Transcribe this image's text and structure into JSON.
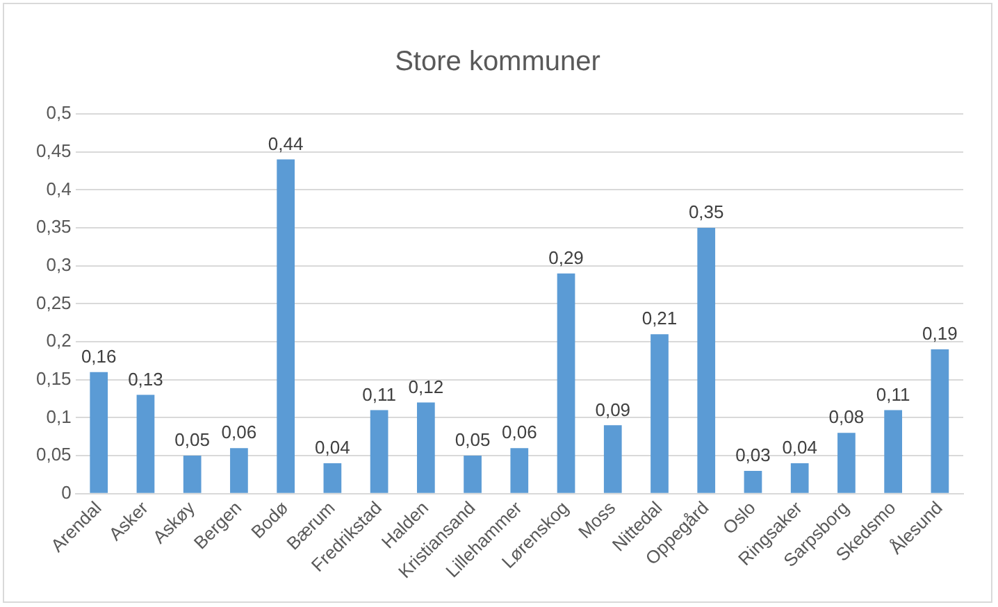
{
  "chart_data": {
    "type": "bar",
    "title": "Store kommuner",
    "categories": [
      "Arendal",
      "Asker",
      "Askøy",
      "Bergen",
      "Bodø",
      "Bærum",
      "Fredrikstad",
      "Halden",
      "Kristiansand",
      "Lillehammer",
      "Lørenskog",
      "Moss",
      "Nittedal",
      "Oppegård",
      "Oslo",
      "Ringsaker",
      "Sarpsborg",
      "Skedsmo",
      "Ålesund"
    ],
    "values": [
      0.16,
      0.13,
      0.05,
      0.06,
      0.44,
      0.04,
      0.11,
      0.12,
      0.05,
      0.06,
      0.29,
      0.09,
      0.21,
      0.35,
      0.03,
      0.04,
      0.08,
      0.11,
      0.19
    ],
    "value_labels": [
      "0,16",
      "0,13",
      "0,05",
      "0,06",
      "0,44",
      "0,04",
      "0,11",
      "0,12",
      "0,05",
      "0,06",
      "0,29",
      "0,09",
      "0,21",
      "0,35",
      "0,03",
      "0,04",
      "0,08",
      "0,11",
      "0,19"
    ],
    "color": "#5b9bd5",
    "ylim": [
      0,
      0.5
    ],
    "yticks": [
      {
        "value": 0,
        "label": "0"
      },
      {
        "value": 0.05,
        "label": "0,05"
      },
      {
        "value": 0.1,
        "label": "0,1"
      },
      {
        "value": 0.15,
        "label": "0,15"
      },
      {
        "value": 0.2,
        "label": "0,2"
      },
      {
        "value": 0.25,
        "label": "0,25"
      },
      {
        "value": 0.3,
        "label": "0,3"
      },
      {
        "value": 0.35,
        "label": "0,35"
      },
      {
        "value": 0.4,
        "label": "0,4"
      },
      {
        "value": 0.45,
        "label": "0,45"
      },
      {
        "value": 0.5,
        "label": "0,5"
      }
    ],
    "grid": "y"
  }
}
